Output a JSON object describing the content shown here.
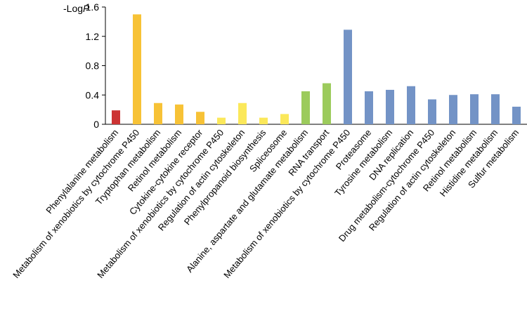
{
  "chart_data": {
    "type": "bar",
    "ylabel": "-Log",
    "ylabel_italic": "P",
    "ylim": [
      0,
      1.6
    ],
    "yticks": [
      "0",
      "0.4",
      "0.8",
      "1.2",
      "1.6"
    ],
    "grid": false,
    "categories": [
      "Phenylalanine metabolism",
      "Metabolism of xenobiotics by cytochrome P450",
      "Tryptophan metabolism",
      "Retinol metabolism",
      "Cytokine-cytokine receptor",
      "Metabolism of xenobiotics by cytochrome P450",
      "Regulation of actin cytoskeleton",
      "Phenylpropanoid biosynthesis",
      "Spliceosome",
      "Alanine, aspartate and glutamate metabolism",
      "RNA transport",
      "Metabolism of xenobiotics by cytochrome P450",
      "Proteasome",
      "Tyrosine metabolism",
      "DNA replication",
      "Drug metabolism-cytochrome P450",
      "Regulation of actin cytoskeleton",
      "Retinol metabolism",
      "Histidine metabolism",
      "Sulfur metabolism"
    ],
    "values": [
      0.19,
      1.5,
      0.29,
      0.27,
      0.17,
      0.09,
      0.29,
      0.09,
      0.14,
      0.45,
      0.56,
      1.29,
      0.45,
      0.47,
      0.52,
      0.34,
      0.4,
      0.41,
      0.41,
      0.24
    ],
    "colors": [
      "#cc3333",
      "#f7c236",
      "#f7c236",
      "#f7c236",
      "#f7c236",
      "#fbe85a",
      "#fbe85a",
      "#fbe85a",
      "#fbe85a",
      "#9ccb5c",
      "#9ccb5c",
      "#7393c6",
      "#7393c6",
      "#7393c6",
      "#7393c6",
      "#7393c6",
      "#7393c6",
      "#7393c6",
      "#7393c6",
      "#7393c6"
    ]
  }
}
